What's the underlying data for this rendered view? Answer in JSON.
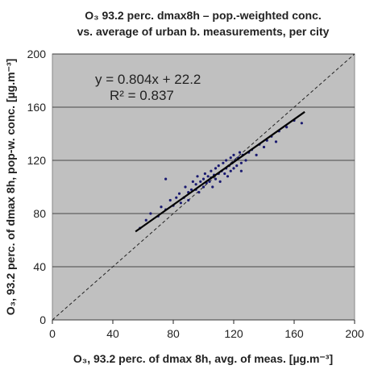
{
  "chart_data": {
    "type": "scatter",
    "title": "O₃ 93.2 perc. dmax8h – pop.-weighted conc.",
    "subtitle": "vs. average of urban b. measurements, per city",
    "x_label": "O₃, 93.2 perc. of dmax 8h, avg. of meas. [µg.m⁻³]",
    "y_label": "O₃, 93.2 perc. of dmax 8h, pop-w. conc. [µg.m⁻³]",
    "annotations": [
      "y = 0.804x + 22.2",
      "R² = 0.837"
    ],
    "trendline": {
      "slope": 0.804,
      "intercept": 22.2,
      "x": [
        55,
        167
      ]
    },
    "xlim": [
      0,
      200
    ],
    "ylim": [
      0,
      200
    ],
    "xticks": [
      0,
      40,
      80,
      120,
      160,
      200
    ],
    "yticks": [
      0,
      40,
      80,
      120,
      160,
      200
    ],
    "grid": true,
    "color": "#1a1a70",
    "x": [
      58,
      62,
      65,
      70,
      72,
      75,
      78,
      80,
      82,
      84,
      85,
      87,
      88,
      90,
      90,
      92,
      93,
      95,
      95,
      96,
      97,
      98,
      100,
      100,
      101,
      102,
      103,
      104,
      105,
      105,
      106,
      107,
      108,
      108,
      110,
      110,
      111,
      112,
      113,
      114,
      115,
      115,
      116,
      117,
      118,
      118,
      119,
      120,
      120,
      121,
      122,
      123,
      124,
      125,
      126,
      128,
      130,
      132,
      135,
      137,
      140,
      142,
      145,
      148,
      150,
      155,
      160,
      165,
      75,
      125
    ],
    "values": [
      69,
      75,
      80,
      78,
      85,
      83,
      90,
      86,
      92,
      95,
      88,
      92,
      100,
      96,
      90,
      98,
      104,
      98,
      102,
      108,
      96,
      104,
      100,
      106,
      110,
      103,
      108,
      104,
      112,
      107,
      100,
      109,
      114,
      106,
      110,
      116,
      104,
      112,
      118,
      110,
      114,
      120,
      108,
      116,
      122,
      112,
      118,
      114,
      124,
      120,
      116,
      122,
      126,
      118,
      124,
      120,
      126,
      128,
      124,
      132,
      130,
      135,
      138,
      134,
      142,
      145,
      150,
      148,
      106,
      112
    ]
  }
}
